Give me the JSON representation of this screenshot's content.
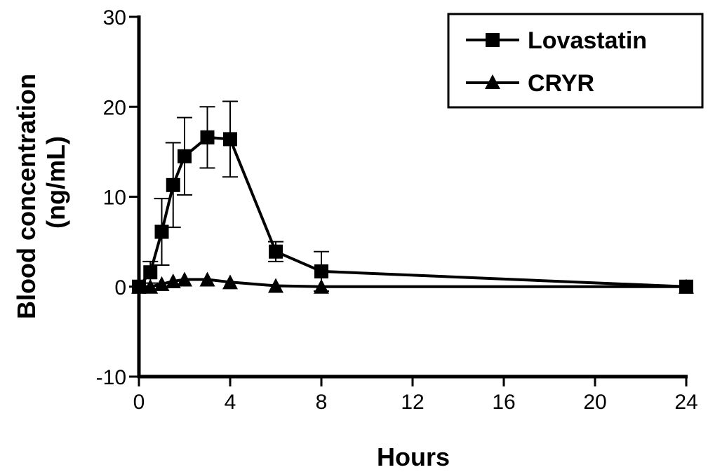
{
  "chart_data": {
    "type": "line",
    "xlabel": "Hours",
    "ylabel": "Blood concentration",
    "ylabel_unit": "(ng/mL)",
    "xlim": [
      0,
      24
    ],
    "ylim": [
      -10,
      30
    ],
    "xticks": [
      0,
      4,
      8,
      12,
      16,
      20,
      24
    ],
    "yticks": [
      -10,
      0,
      10,
      20,
      30
    ],
    "xtick_labels": [
      "0",
      "4",
      "8",
      "12",
      "16",
      "20",
      "24"
    ],
    "ytick_labels": [
      "-10",
      "0",
      "10",
      "20",
      "30"
    ],
    "grid": false,
    "legend_position": "top-right",
    "series": [
      {
        "name": "Lovastatin",
        "marker": "square",
        "x": [
          0,
          0.5,
          1,
          1.5,
          2,
          3,
          4,
          6,
          8,
          24
        ],
        "y": [
          0,
          1.6,
          6.1,
          11.3,
          14.5,
          16.6,
          16.4,
          3.9,
          1.7,
          0
        ],
        "error": [
          0,
          1.2,
          3.7,
          4.7,
          4.3,
          3.4,
          4.2,
          1.1,
          2.2,
          0
        ]
      },
      {
        "name": "CRYR",
        "marker": "triangle",
        "x": [
          0,
          0.5,
          1,
          1.5,
          2,
          3,
          4,
          6,
          8,
          24
        ],
        "y": [
          0,
          0,
          0.3,
          0.6,
          0.8,
          0.8,
          0.5,
          0.1,
          0,
          0
        ]
      }
    ]
  }
}
